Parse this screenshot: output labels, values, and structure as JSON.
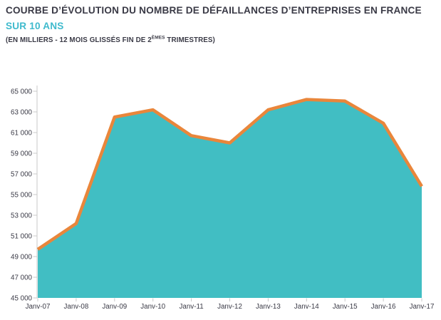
{
  "header": {
    "title": "COURBE D’ÉVOLUTION DU NOMBRE DE DÉFAILLANCES D’ENTREPRISES EN FRANCE",
    "subtitle": "SUR 10 ANS",
    "note_prefix": "(EN MILLIERS - 12 MOIS GLISSÉS FIN DE 2",
    "note_superscript": "ÈMES",
    "note_suffix": " TRIMESTRES)"
  },
  "chart_data": {
    "type": "area",
    "title": "Courbe d’évolution du nombre de défaillances d’entreprises en France sur 10 ans",
    "categories": [
      "Janv-07",
      "Janv-08",
      "Janv-09",
      "Janv-10",
      "Janv-11",
      "Janv-12",
      "Janv-13",
      "Janv-14",
      "Janv-15",
      "Janv-16",
      "Janv-17"
    ],
    "values": [
      49700,
      52200,
      62500,
      63200,
      60700,
      60000,
      63200,
      64200,
      64050,
      61900,
      55800
    ],
    "xlabel": "",
    "ylabel": "",
    "ylim": [
      45000,
      65000
    ],
    "y_tick_step": 2000,
    "y_tick_labels": [
      "65 000",
      "63 000",
      "61 000",
      "59 000",
      "57 000",
      "55 000",
      "53 000",
      "51 000",
      "49 000",
      "47 000",
      "45 000"
    ],
    "grid": false,
    "legend": "none",
    "colors": {
      "area_fill": "#41bec3",
      "line_stroke": "#e9863b",
      "axis_line": "#c9c9c9",
      "tick_label": "#3a3a46"
    }
  }
}
